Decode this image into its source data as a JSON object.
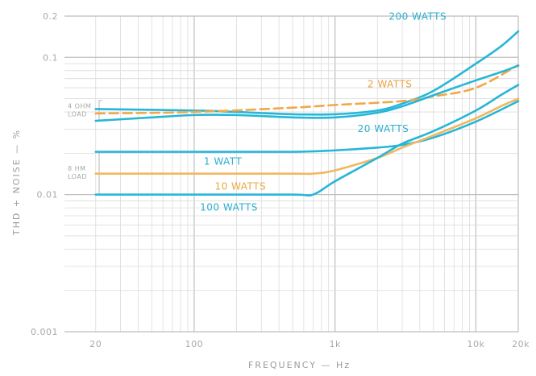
{
  "chart_data": {
    "type": "line",
    "xlabel": "FREQUENCY — Hz",
    "ylabel": "THD + NOISE — %",
    "x_scale": "log",
    "y_scale": "log",
    "xlim": [
      12,
      20000
    ],
    "ylim": [
      0.001,
      0.2
    ],
    "x_ticks": [
      {
        "value": 20,
        "label": "20"
      },
      {
        "value": 100,
        "label": "100"
      },
      {
        "value": 1000,
        "label": "1k"
      },
      {
        "value": 10000,
        "label": "10k"
      },
      {
        "value": 20000,
        "label": "20k"
      }
    ],
    "y_ticks": [
      {
        "value": 0.2,
        "label": "0.2"
      },
      {
        "value": 0.1,
        "label": "0.1"
      },
      {
        "value": 0.01,
        "label": "0.01"
      },
      {
        "value": 0.001,
        "label": "0.001"
      }
    ],
    "grid": true,
    "load_groups": [
      {
        "label": "4 OHM LOAD",
        "lines": [
          "4 OHM",
          "LOAD"
        ],
        "y_range": [
          0.0345,
          0.0485
        ]
      },
      {
        "label": "8 OHM LOAD",
        "lines": [
          "8 HM",
          "LOAD"
        ],
        "y_range": [
          0.01,
          0.0205
        ]
      }
    ],
    "series": [
      {
        "name": "200 WATTS",
        "color": "#26b6d8",
        "dash": false,
        "x": [
          20,
          100,
          200,
          500,
          1000,
          2000,
          3000,
          5000,
          10000,
          15000,
          20000
        ],
        "y": [
          0.042,
          0.041,
          0.04,
          0.0385,
          0.0385,
          0.041,
          0.046,
          0.057,
          0.09,
          0.12,
          0.155
        ]
      },
      {
        "name": "2 WATTS",
        "color": "#f0a848",
        "dash": true,
        "x": [
          20,
          100,
          500,
          1000,
          3000,
          5000,
          10000,
          20000
        ],
        "y": [
          0.039,
          0.04,
          0.043,
          0.045,
          0.048,
          0.052,
          0.06,
          0.088
        ]
      },
      {
        "name": "20 WATTS",
        "color": "#26b6d8",
        "dash": false,
        "x": [
          20,
          50,
          100,
          200,
          500,
          1000,
          2000,
          3000,
          5000,
          10000,
          15000,
          20000
        ],
        "y": [
          0.0345,
          0.0365,
          0.038,
          0.038,
          0.0365,
          0.0365,
          0.0395,
          0.044,
          0.053,
          0.068,
          0.078,
          0.087
        ]
      },
      {
        "name": "1 WATT",
        "color": "#26b6d8",
        "dash": false,
        "x": [
          20,
          100,
          500,
          1000,
          2000,
          3000,
          5000,
          10000,
          20000
        ],
        "y": [
          0.0205,
          0.0205,
          0.0205,
          0.021,
          0.022,
          0.023,
          0.026,
          0.034,
          0.048
        ]
      },
      {
        "name": "10 WATTS",
        "color": "#f0b860",
        "dash": false,
        "x": [
          20,
          100,
          500,
          700,
          1000,
          2000,
          3000,
          5000,
          10000,
          15000,
          20000
        ],
        "y": [
          0.0142,
          0.0142,
          0.0142,
          0.0142,
          0.015,
          0.0185,
          0.022,
          0.027,
          0.036,
          0.044,
          0.05
        ]
      },
      {
        "name": "100 WATTS",
        "color": "#26b6d8",
        "dash": false,
        "x": [
          20,
          100,
          500,
          700,
          1000,
          2000,
          3000,
          5000,
          10000,
          15000,
          20000
        ],
        "y": [
          0.01,
          0.01,
          0.01,
          0.01,
          0.0125,
          0.0185,
          0.0235,
          0.029,
          0.041,
          0.053,
          0.063
        ]
      }
    ]
  }
}
